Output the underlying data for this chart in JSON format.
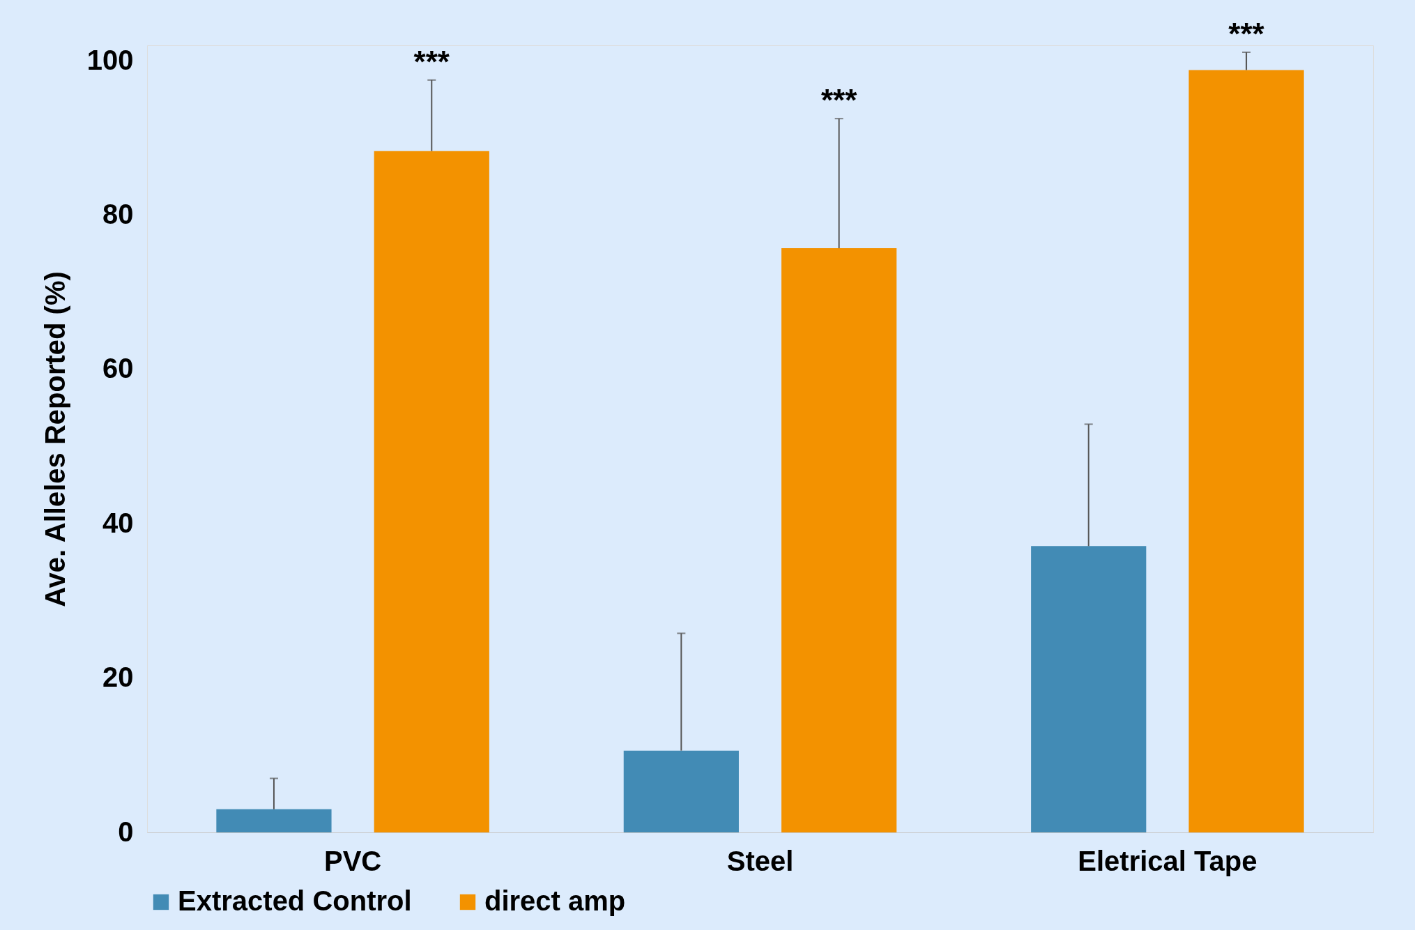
{
  "chart_data": {
    "type": "bar",
    "ylabel": "Ave. Alleles Reported (%)",
    "categories": [
      "PVC",
      "Steel",
      "Eletrical Tape"
    ],
    "series": [
      {
        "name": "Extracted Control",
        "color": "#428bb5",
        "values": [
          3.0,
          10.6,
          37.1
        ],
        "errors": [
          [
            3.0,
            7.0
          ],
          [
            10.6,
            25.8
          ],
          [
            37.1,
            52.9
          ]
        ]
      },
      {
        "name": "direct amp",
        "color": "#f39200",
        "values": [
          88.3,
          75.7,
          98.8
        ],
        "errors": [
          [
            88.3,
            97.5
          ],
          [
            75.7,
            92.5
          ],
          [
            98.8,
            101.1
          ]
        ]
      }
    ],
    "annotations": [
      "***",
      "***",
      "***"
    ],
    "ylim": [
      0,
      102
    ],
    "yticks": [
      0,
      20,
      40,
      60,
      80,
      100
    ],
    "grid": false,
    "legend": "bottom"
  }
}
